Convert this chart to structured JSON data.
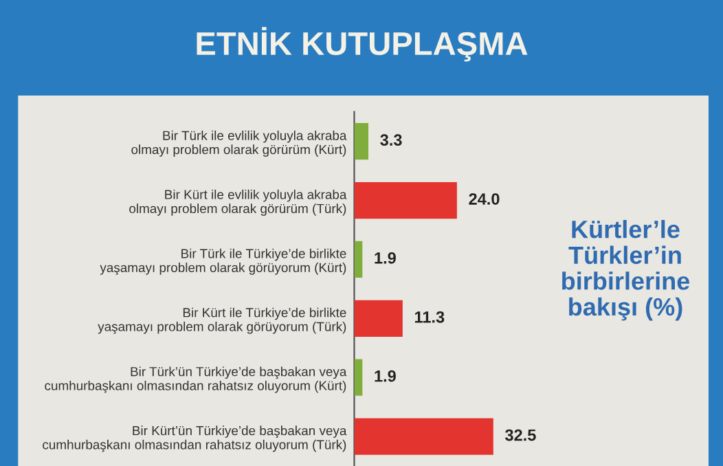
{
  "chart_data": {
    "type": "bar",
    "orientation": "horizontal",
    "title": "ETNİK KUTUPLAŞMA",
    "annotations": [
      "Kürtler’le Türkler’in birbirlerine bakışı (%)"
    ],
    "categories": [
      "Bir Türk ile evlilik yoluyla akraba olmayı problem olarak görürüm (Kürt)",
      "Bir Kürt ile evlilik yoluyla akraba olmayı problem olarak görürüm (Türk)",
      "Bir Türk ile Türkiye’de birlikte yaşamayı problem olarak görüyorum (Kürt)",
      "Bir Kürt ile Türkiye’de birlikte yaşamayı problem olarak görüyorum (Türk)",
      "Bir Türk’ün Türkiye’de başbakan veya cumhurbaşkanı olmasından rahatsız oluyorum (Kürt)",
      "Bir Kürt’ün Türkiye’de başbakan veya cumhurbaşkanı olmasından rahatsız oluyorum (Türk)"
    ],
    "values": [
      3.3,
      24.0,
      1.9,
      11.3,
      1.9,
      32.5
    ],
    "value_labels": [
      "3.3",
      "24.0",
      "1.9",
      "11.3",
      "1.9",
      "32.5"
    ],
    "colors": [
      "#7fae3c",
      "#e3342f",
      "#7fae3c",
      "#e3342f",
      "#7fae3c",
      "#e3342f"
    ],
    "grid": false,
    "legend": false
  }
}
